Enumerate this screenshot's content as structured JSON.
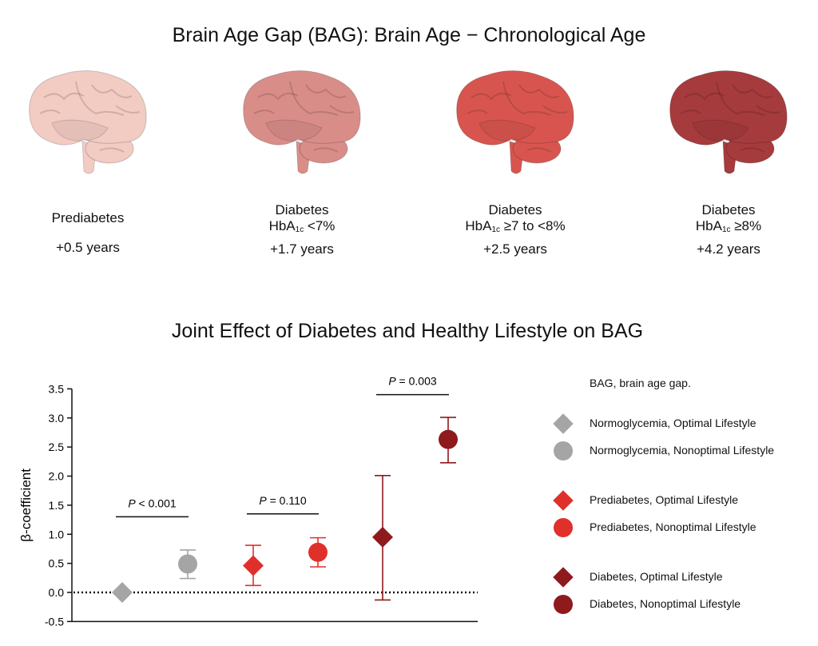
{
  "header": {
    "title": "Brain Age Gap (BAG): Brain Age − Chronological Age"
  },
  "brains": [
    {
      "line1": "Prediabetes",
      "hba1c_prefix": "",
      "hba1c_suffix": "",
      "gap": "+0.5 years",
      "color": "#f2cbc3"
    },
    {
      "line1": "Diabetes",
      "hba1c_prefix": "HbA",
      "hba1c_sub": "1c",
      "hba1c_suffix": " <7%",
      "gap": "+1.7 years",
      "color": "#d98d89"
    },
    {
      "line1": "Diabetes",
      "hba1c_prefix": "HbA",
      "hba1c_sub": "1c",
      "hba1c_suffix": " ≥7 to <8%",
      "gap": "+2.5 years",
      "color": "#d8554f"
    },
    {
      "line1": "Diabetes",
      "hba1c_prefix": "HbA",
      "hba1c_sub": "1c",
      "hba1c_suffix": " ≥8%",
      "gap": "+4.2 years",
      "color": "#a63b3d"
    }
  ],
  "chart_data": {
    "type": "scatter",
    "title": "Joint Effect of Diabetes and Healthy Lifestyle on BAG",
    "ylabel": "β-coefficient",
    "xlabel": "",
    "ylim": [
      -0.5,
      3.5
    ],
    "yticks": [
      "3.5",
      "3.0",
      "2.5",
      "2.0",
      "1.5",
      "1.0",
      "0.5",
      "0.0",
      "-0.5"
    ],
    "reference_line": 0,
    "legend_placement": "right",
    "legend_note": "BAG, brain age gap.",
    "series": [
      {
        "name": "Normoglycemia, Optimal Lifestyle",
        "marker": "diamond",
        "color": "#a5a5a5",
        "value": 0.0,
        "ci": null
      },
      {
        "name": "Normoglycemia, Nonoptimal Lifestyle",
        "marker": "circle",
        "color": "#a5a5a5",
        "value": 0.49,
        "ci": [
          0.24,
          0.73
        ]
      },
      {
        "name": "Prediabetes, Optimal Lifestyle",
        "marker": "diamond",
        "color": "#e0302c",
        "value": 0.46,
        "ci": [
          0.12,
          0.81
        ]
      },
      {
        "name": "Prediabetes, Nonoptimal Lifestyle",
        "marker": "circle",
        "color": "#e0302c",
        "value": 0.69,
        "ci": [
          0.44,
          0.94
        ]
      },
      {
        "name": "Diabetes, Optimal Lifestyle",
        "marker": "diamond",
        "color": "#8e1a1d",
        "value": 0.95,
        "ci": [
          -0.13,
          2.01
        ]
      },
      {
        "name": "Diabetes, Nonoptimal Lifestyle",
        "marker": "circle",
        "color": "#8e1a1d",
        "value": 2.63,
        "ci": [
          2.23,
          3.01
        ]
      }
    ],
    "comparisons": [
      {
        "label_p": "P",
        "label_rest": " < 0.001",
        "from": 0,
        "to": 1,
        "y": 1.3
      },
      {
        "label_p": "P",
        "label_rest": " = 0.110",
        "from": 2,
        "to": 3,
        "y": 1.35
      },
      {
        "label_p": "P",
        "label_rest": " = 0.003",
        "from": 4,
        "to": 5,
        "y": 3.4
      }
    ]
  }
}
